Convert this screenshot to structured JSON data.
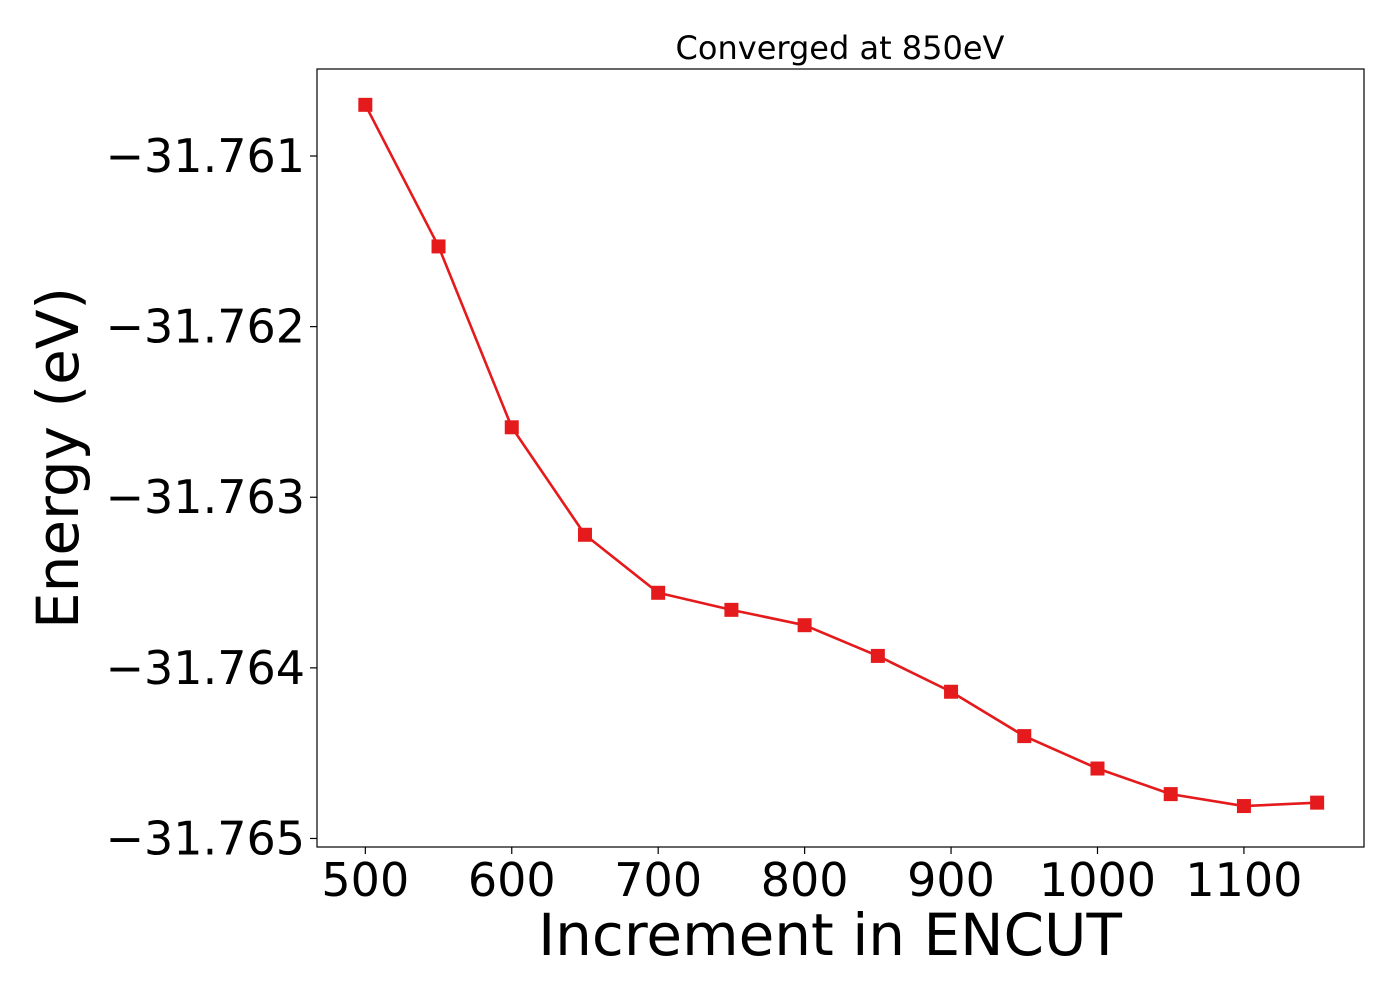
{
  "chart_data": {
    "type": "line",
    "title": "Converged at 850eV",
    "xlabel": "Increment in ENCUT",
    "ylabel": "Energy (eV)",
    "xlim": [
      467,
      1182
    ],
    "ylim": [
      -31.76505,
      -31.76049
    ],
    "grid": false,
    "legend": "none",
    "x_ticks": [
      500,
      600,
      700,
      800,
      900,
      1000,
      1100
    ],
    "x_tick_labels": [
      "500",
      "600",
      "700",
      "800",
      "900",
      "1000",
      "1100"
    ],
    "y_ticks": [
      -31.761,
      -31.762,
      -31.763,
      -31.764,
      -31.765
    ],
    "y_tick_labels": [
      "−31.761",
      "−31.762",
      "−31.763",
      "−31.764",
      "−31.765"
    ],
    "series": [
      {
        "color": "#e41a1c",
        "marker": "square",
        "x": [
          500,
          550,
          600,
          650,
          700,
          750,
          800,
          850,
          900,
          950,
          1000,
          1050,
          1100,
          1150
        ],
        "y": [
          -31.7607,
          -31.76153,
          -31.76259,
          -31.76322,
          -31.76356,
          -31.76366,
          -31.76375,
          -31.76393,
          -31.76414,
          -31.7644,
          -31.76459,
          -31.76474,
          -31.76481,
          -31.76479
        ]
      }
    ]
  }
}
